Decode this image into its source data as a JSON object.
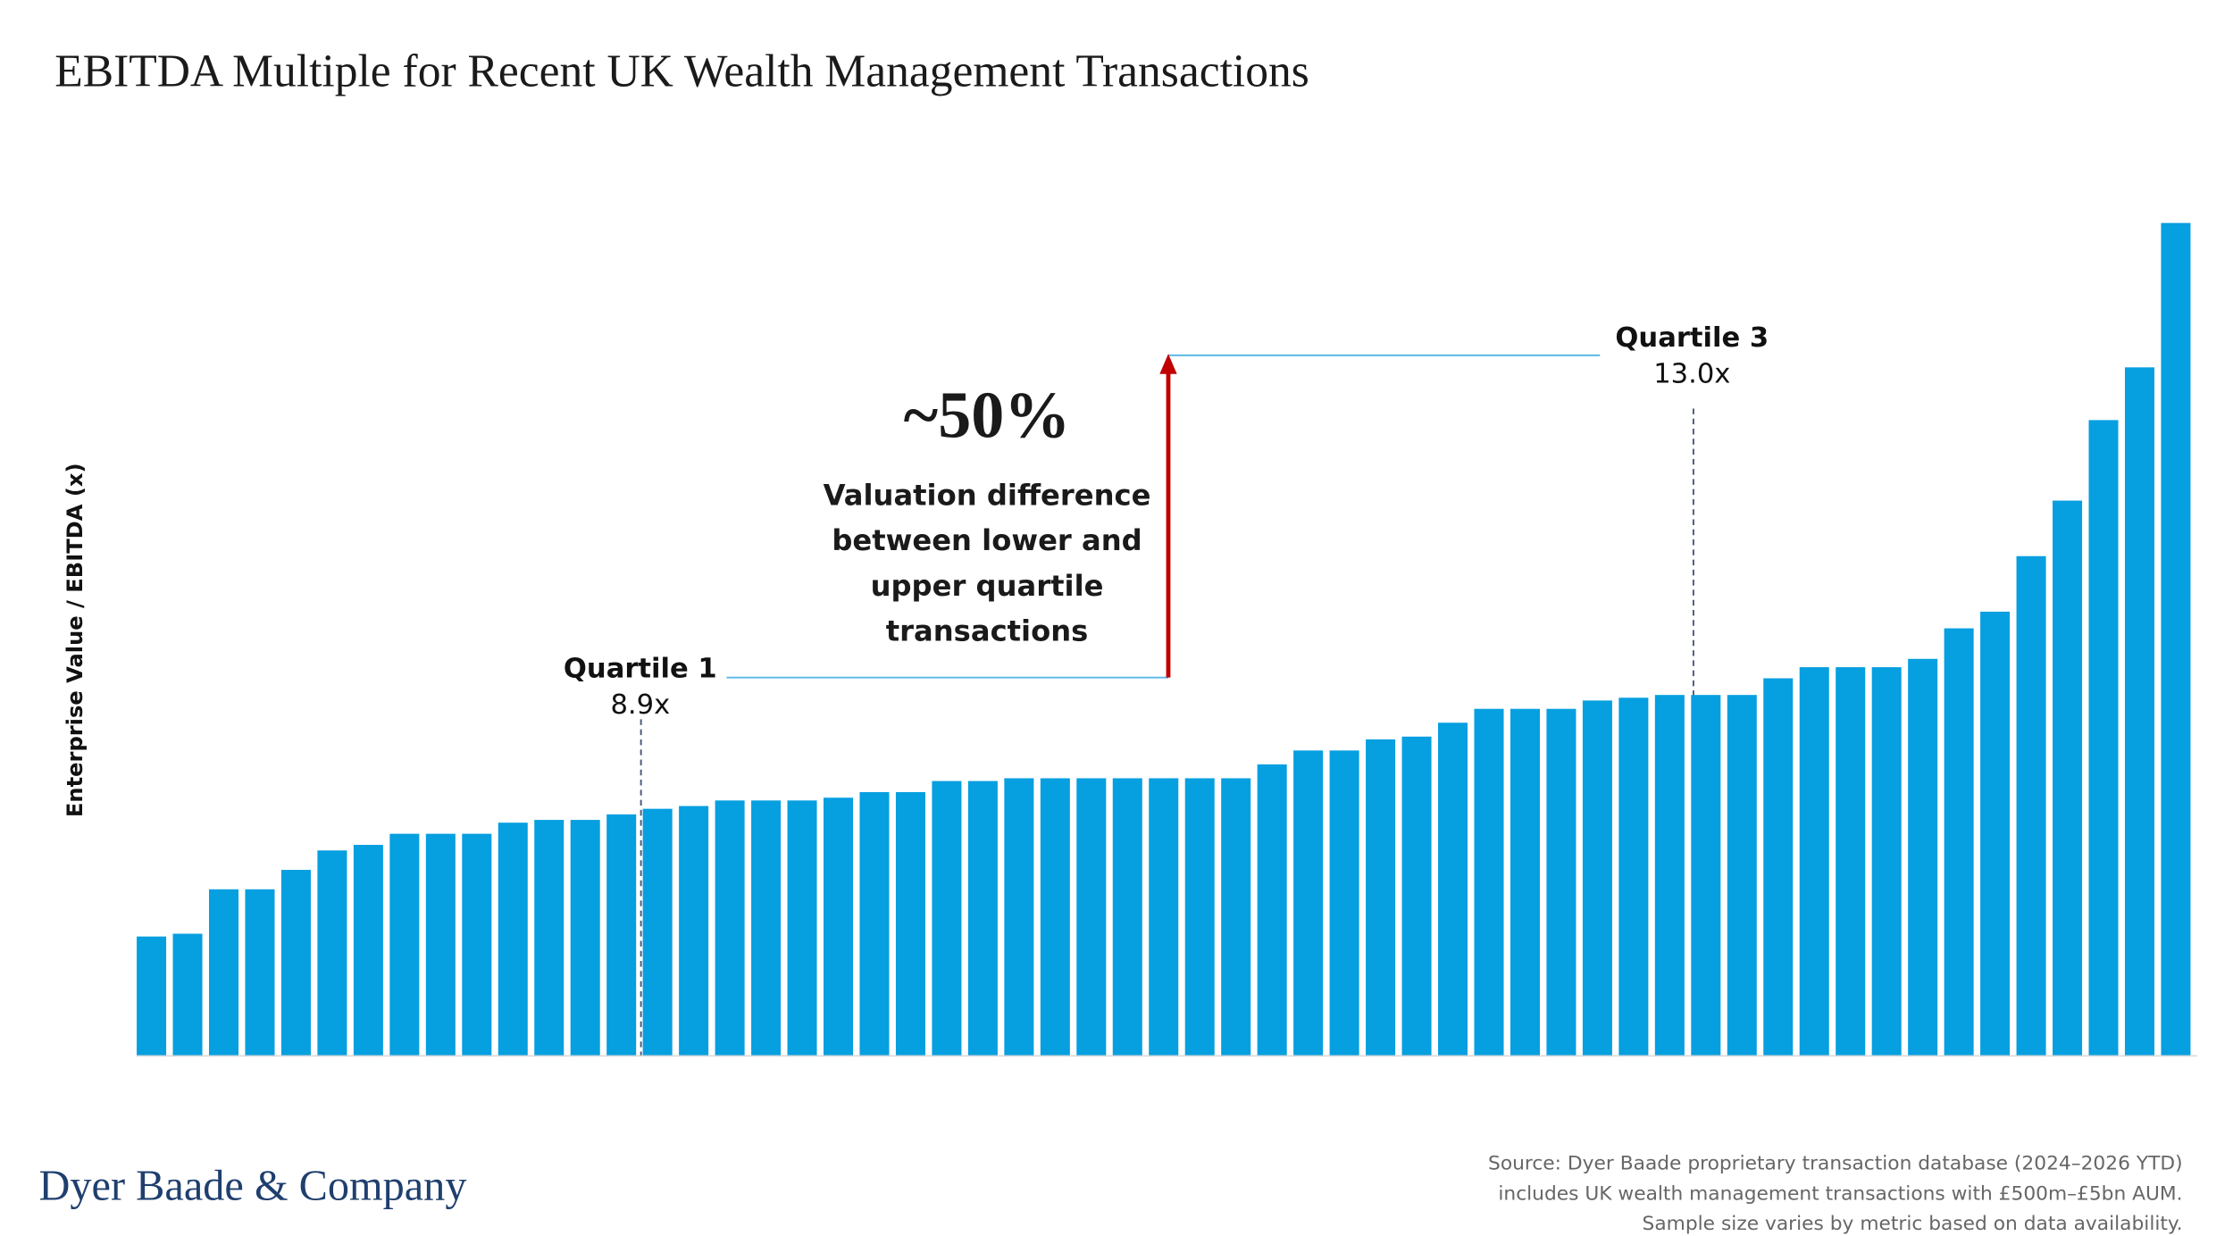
{
  "chart_data": {
    "type": "bar",
    "title": "EBITDA Multiple for Recent UK Wealth Management Transactions",
    "y_label": "Enterprise Value / EBITDA (x)",
    "values": [
      4.3,
      4.4,
      6.0,
      6.0,
      6.7,
      7.4,
      7.6,
      8.0,
      8.0,
      8.0,
      8.4,
      8.5,
      8.5,
      8.7,
      8.9,
      9.0,
      9.2,
      9.2,
      9.2,
      9.3,
      9.5,
      9.5,
      9.9,
      9.9,
      10.0,
      10.0,
      10.0,
      10.0,
      10.0,
      10.0,
      10.0,
      10.5,
      11.0,
      11.0,
      11.4,
      11.5,
      12.0,
      12.5,
      12.5,
      12.5,
      12.8,
      12.9,
      13.0,
      13.0,
      13.0,
      13.6,
      14.0,
      14.0,
      14.0,
      14.3,
      15.4,
      16.0,
      18.0,
      20.0,
      22.9,
      24.8,
      30.0
    ],
    "color": "#069fe0",
    "ylim": [
      0,
      30
    ],
    "quartiles": [
      {
        "label": "Quartile 1",
        "value": 8.9,
        "value_label": "8.9x"
      },
      {
        "label": "Quartile 3",
        "value": 13.0,
        "value_label": "13.0x"
      }
    ],
    "annotation": {
      "headline": "~50%",
      "lines": [
        "Valuation difference",
        "between lower and",
        "upper quartile",
        "transactions"
      ]
    },
    "logo": "Dyer Baade & Company",
    "source": [
      "Source: Dyer Baade proprietary transaction database (2024–2026 YTD)",
      "includes UK wealth management transactions with £500m–£5bn AUM.",
      "Sample size varies by metric based on data availability."
    ]
  }
}
